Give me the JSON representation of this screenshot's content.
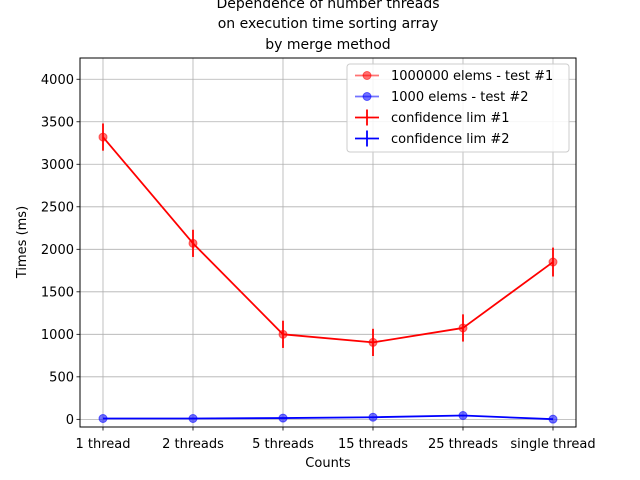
{
  "chart_data": {
    "type": "line",
    "title_lines": [
      "Dependence of number threads",
      "on execution time sorting array",
      "by merge method"
    ],
    "xlabel": "Counts",
    "ylabel": "Times (ms)",
    "categories": [
      "1 thread",
      "2 threads",
      "5 threads",
      "15 threads",
      "25 threads",
      "single thread"
    ],
    "yticks": [
      0,
      500,
      1000,
      1500,
      2000,
      2500,
      3000,
      3500,
      4000
    ],
    "ylim": [
      -90,
      4250
    ],
    "grid": true,
    "legend_position": "upper right",
    "series": [
      {
        "name": "1000000 elems - test #1",
        "color": "#ff0000",
        "values": [
          3320,
          2070,
          1000,
          905,
          1075,
          1850
        ]
      },
      {
        "name": "1000 elems - test #2",
        "color": "#0000ff",
        "values": [
          10,
          10,
          15,
          25,
          45,
          2
        ]
      }
    ],
    "errorbars": [
      {
        "name": "confidence lim #1",
        "color": "#ff0000",
        "err": [
          160,
          160,
          160,
          160,
          160,
          170
        ]
      },
      {
        "name": "confidence lim #2",
        "color": "#0000ff",
        "err": [
          0,
          0,
          0,
          0,
          0,
          0
        ]
      }
    ]
  }
}
